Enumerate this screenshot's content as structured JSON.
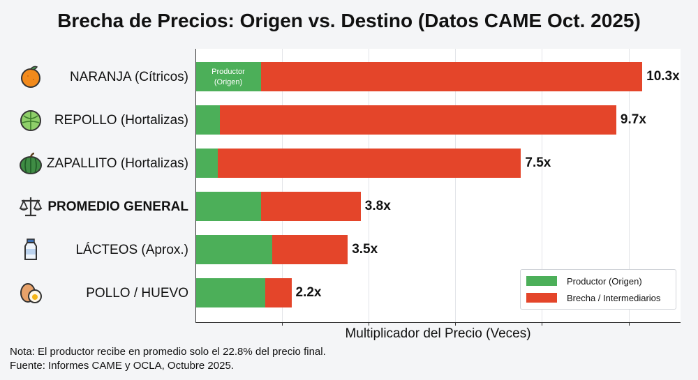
{
  "title": "Brecha de Precios: Origen vs. Destino (Datos CAME Oct. 2025)",
  "chart_data": {
    "type": "bar",
    "orientation": "horizontal",
    "stacked": true,
    "categories": [
      "NARANJA (Cítricos)",
      "REPOLLO (Hortalizas)",
      "ZAPALLITO (Hortalizas)",
      "PROMEDIO GENERAL",
      "LÁCTEOS (Aprox.)",
      "POLLO / HUEVO"
    ],
    "bold_categories": [
      "PROMEDIO GENERAL"
    ],
    "icons": [
      "orange-icon",
      "cabbage-icon",
      "squash-icon",
      "scale-icon",
      "milk-bottle-icon",
      "egg-icon"
    ],
    "series": [
      {
        "name": "Productor (Origen)",
        "values": [
          1.5,
          0.55,
          0.5,
          1.5,
          1.75,
          1.6
        ],
        "color": "#4caf59"
      },
      {
        "name": "Brecha / Intermediarios",
        "values": [
          8.8,
          9.15,
          7.0,
          2.3,
          1.75,
          0.6
        ],
        "color": "#e4452a"
      }
    ],
    "totals_labels": [
      "10.3x",
      "9.7x",
      "7.5x",
      "3.8x",
      "3.5x",
      "2.2x"
    ],
    "inbar_label": [
      "Productor",
      "(Origen)"
    ],
    "xlabel": "Multiplicador del Precio (Veces)",
    "xlim": [
      0,
      11.2
    ],
    "xgrid": [
      2,
      4,
      6,
      8,
      10
    ],
    "grid": true,
    "legend_position": "bottom-right"
  },
  "notes": [
    "Nota: El productor recibe en promedio solo el 22.8% del precio final.",
    "Fuente: Informes CAME y OCLA, Octubre 2025."
  ]
}
